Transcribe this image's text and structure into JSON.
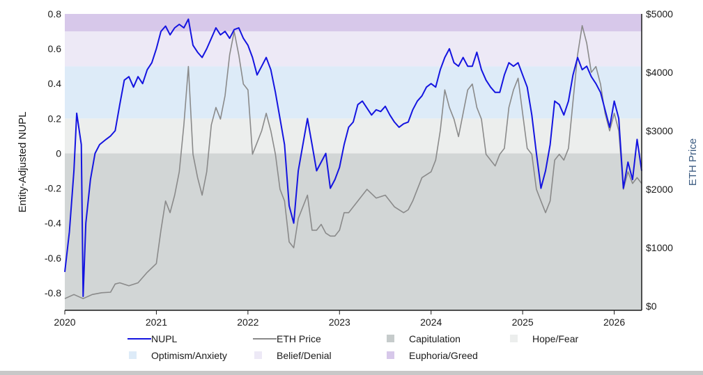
{
  "chart_data": {
    "type": "line",
    "title": "",
    "ylabel": "Entity-Adjusted NUPL",
    "y2label": "ETH Price",
    "xlim": [
      2020,
      2026.3
    ],
    "ylim": [
      -0.9,
      0.8
    ],
    "y2lim": [
      -70,
      5000
    ],
    "x_ticks": [
      {
        "value": 2020,
        "label": "2020"
      },
      {
        "value": 2021,
        "label": "2021"
      },
      {
        "value": 2022,
        "label": "2022"
      },
      {
        "value": 2023,
        "label": "2023"
      },
      {
        "value": 2024,
        "label": "2024"
      },
      {
        "value": 2025,
        "label": "2025"
      },
      {
        "value": 2026,
        "label": "2026"
      }
    ],
    "y_ticks": [
      {
        "value": 0.8,
        "label": "0.8"
      },
      {
        "value": 0.6,
        "label": "0.6"
      },
      {
        "value": 0.4,
        "label": "0.4"
      },
      {
        "value": 0.2,
        "label": "0.2"
      },
      {
        "value": 0,
        "label": "0"
      },
      {
        "value": -0.2,
        "label": "-0.2"
      },
      {
        "value": -0.4,
        "label": "-0.4"
      },
      {
        "value": -0.6,
        "label": "-0.6"
      },
      {
        "value": -0.8,
        "label": "-0.8"
      }
    ],
    "y2_ticks": [
      {
        "value": 5000,
        "label": "$5000"
      },
      {
        "value": 4000,
        "label": "$4000"
      },
      {
        "value": 3000,
        "label": "$3000"
      },
      {
        "value": 2000,
        "label": "$2000"
      },
      {
        "value": 1000,
        "label": "$1000"
      },
      {
        "value": 0,
        "label": "$0"
      }
    ],
    "zones": [
      {
        "name": "Capitulation",
        "from": -0.9,
        "to": 0,
        "color": "#d2d6d6"
      },
      {
        "name": "Hope/Fear",
        "from": 0,
        "to": 0.2,
        "color": "#eceeed"
      },
      {
        "name": "Optimism/Anxiety",
        "from": 0.2,
        "to": 0.5,
        "color": "#ddebf8"
      },
      {
        "name": "Belief/Denial",
        "from": 0.5,
        "to": 0.7,
        "color": "#ede9f6"
      },
      {
        "name": "Euphoria/Greed",
        "from": 0.7,
        "to": 0.8,
        "color": "#d7c8ea"
      }
    ],
    "series": [
      {
        "name": "NUPL",
        "axis": "left",
        "color": "#1414e0",
        "points": [
          [
            2020.0,
            -0.68
          ],
          [
            2020.05,
            -0.45
          ],
          [
            2020.1,
            -0.1
          ],
          [
            2020.13,
            0.23
          ],
          [
            2020.18,
            0.05
          ],
          [
            2020.2,
            -0.82
          ],
          [
            2020.23,
            -0.4
          ],
          [
            2020.28,
            -0.15
          ],
          [
            2020.33,
            0.0
          ],
          [
            2020.38,
            0.05
          ],
          [
            2020.45,
            0.08
          ],
          [
            2020.5,
            0.1
          ],
          [
            2020.55,
            0.13
          ],
          [
            2020.6,
            0.28
          ],
          [
            2020.65,
            0.42
          ],
          [
            2020.7,
            0.44
          ],
          [
            2020.75,
            0.38
          ],
          [
            2020.8,
            0.44
          ],
          [
            2020.85,
            0.4
          ],
          [
            2020.9,
            0.48
          ],
          [
            2020.95,
            0.52
          ],
          [
            2021.0,
            0.6
          ],
          [
            2021.05,
            0.7
          ],
          [
            2021.1,
            0.73
          ],
          [
            2021.15,
            0.68
          ],
          [
            2021.2,
            0.72
          ],
          [
            2021.25,
            0.74
          ],
          [
            2021.3,
            0.72
          ],
          [
            2021.35,
            0.77
          ],
          [
            2021.4,
            0.62
          ],
          [
            2021.45,
            0.58
          ],
          [
            2021.5,
            0.55
          ],
          [
            2021.55,
            0.6
          ],
          [
            2021.6,
            0.66
          ],
          [
            2021.65,
            0.72
          ],
          [
            2021.7,
            0.68
          ],
          [
            2021.75,
            0.7
          ],
          [
            2021.8,
            0.66
          ],
          [
            2021.85,
            0.71
          ],
          [
            2021.9,
            0.72
          ],
          [
            2021.95,
            0.66
          ],
          [
            2022.0,
            0.62
          ],
          [
            2022.05,
            0.55
          ],
          [
            2022.1,
            0.45
          ],
          [
            2022.15,
            0.5
          ],
          [
            2022.2,
            0.55
          ],
          [
            2022.25,
            0.48
          ],
          [
            2022.3,
            0.35
          ],
          [
            2022.35,
            0.2
          ],
          [
            2022.4,
            0.05
          ],
          [
            2022.45,
            -0.3
          ],
          [
            2022.5,
            -0.4
          ],
          [
            2022.55,
            -0.1
          ],
          [
            2022.6,
            0.05
          ],
          [
            2022.65,
            0.2
          ],
          [
            2022.7,
            0.05
          ],
          [
            2022.75,
            -0.1
          ],
          [
            2022.8,
            -0.05
          ],
          [
            2022.85,
            0.0
          ],
          [
            2022.9,
            -0.2
          ],
          [
            2022.95,
            -0.15
          ],
          [
            2023.0,
            -0.08
          ],
          [
            2023.05,
            0.05
          ],
          [
            2023.1,
            0.15
          ],
          [
            2023.15,
            0.18
          ],
          [
            2023.2,
            0.28
          ],
          [
            2023.25,
            0.3
          ],
          [
            2023.3,
            0.26
          ],
          [
            2023.35,
            0.22
          ],
          [
            2023.4,
            0.25
          ],
          [
            2023.45,
            0.24
          ],
          [
            2023.5,
            0.27
          ],
          [
            2023.55,
            0.22
          ],
          [
            2023.6,
            0.18
          ],
          [
            2023.65,
            0.15
          ],
          [
            2023.7,
            0.17
          ],
          [
            2023.75,
            0.18
          ],
          [
            2023.8,
            0.25
          ],
          [
            2023.85,
            0.3
          ],
          [
            2023.9,
            0.33
          ],
          [
            2023.95,
            0.38
          ],
          [
            2024.0,
            0.4
          ],
          [
            2024.05,
            0.38
          ],
          [
            2024.1,
            0.48
          ],
          [
            2024.15,
            0.55
          ],
          [
            2024.2,
            0.6
          ],
          [
            2024.25,
            0.52
          ],
          [
            2024.3,
            0.5
          ],
          [
            2024.35,
            0.55
          ],
          [
            2024.4,
            0.5
          ],
          [
            2024.45,
            0.5
          ],
          [
            2024.5,
            0.58
          ],
          [
            2024.55,
            0.48
          ],
          [
            2024.6,
            0.42
          ],
          [
            2024.65,
            0.38
          ],
          [
            2024.7,
            0.35
          ],
          [
            2024.75,
            0.35
          ],
          [
            2024.8,
            0.45
          ],
          [
            2024.85,
            0.52
          ],
          [
            2024.9,
            0.5
          ],
          [
            2024.95,
            0.52
          ],
          [
            2025.0,
            0.45
          ],
          [
            2025.05,
            0.38
          ],
          [
            2025.1,
            0.22
          ],
          [
            2025.15,
            0.0
          ],
          [
            2025.2,
            -0.2
          ],
          [
            2025.25,
            -0.1
          ],
          [
            2025.3,
            0.05
          ],
          [
            2025.35,
            0.3
          ],
          [
            2025.4,
            0.28
          ],
          [
            2025.45,
            0.22
          ],
          [
            2025.5,
            0.3
          ],
          [
            2025.55,
            0.45
          ],
          [
            2025.6,
            0.55
          ],
          [
            2025.65,
            0.48
          ],
          [
            2025.7,
            0.5
          ],
          [
            2025.75,
            0.44
          ],
          [
            2025.8,
            0.4
          ],
          [
            2025.85,
            0.35
          ],
          [
            2025.9,
            0.25
          ],
          [
            2025.95,
            0.15
          ],
          [
            2026.0,
            0.3
          ],
          [
            2026.05,
            0.2
          ],
          [
            2026.1,
            -0.2
          ],
          [
            2026.15,
            -0.05
          ],
          [
            2026.2,
            -0.15
          ],
          [
            2026.25,
            0.08
          ],
          [
            2026.3,
            -0.1
          ]
        ]
      },
      {
        "name": "ETH Price",
        "axis": "right",
        "color": "#8a8a8a",
        "points": [
          [
            2020.0,
            130
          ],
          [
            2020.1,
            200
          ],
          [
            2020.2,
            130
          ],
          [
            2020.3,
            200
          ],
          [
            2020.4,
            230
          ],
          [
            2020.5,
            240
          ],
          [
            2020.55,
            380
          ],
          [
            2020.6,
            400
          ],
          [
            2020.7,
            350
          ],
          [
            2020.8,
            400
          ],
          [
            2020.9,
            580
          ],
          [
            2021.0,
            730
          ],
          [
            2021.05,
            1300
          ],
          [
            2021.1,
            1800
          ],
          [
            2021.15,
            1600
          ],
          [
            2021.2,
            1900
          ],
          [
            2021.25,
            2300
          ],
          [
            2021.3,
            3100
          ],
          [
            2021.35,
            4100
          ],
          [
            2021.4,
            2600
          ],
          [
            2021.45,
            2200
          ],
          [
            2021.5,
            1900
          ],
          [
            2021.55,
            2300
          ],
          [
            2021.6,
            3100
          ],
          [
            2021.65,
            3400
          ],
          [
            2021.7,
            3200
          ],
          [
            2021.75,
            3600
          ],
          [
            2021.8,
            4300
          ],
          [
            2021.85,
            4700
          ],
          [
            2021.9,
            4300
          ],
          [
            2021.95,
            3800
          ],
          [
            2022.0,
            3700
          ],
          [
            2022.05,
            2600
          ],
          [
            2022.1,
            2800
          ],
          [
            2022.15,
            3000
          ],
          [
            2022.2,
            3300
          ],
          [
            2022.25,
            3000
          ],
          [
            2022.3,
            2600
          ],
          [
            2022.35,
            2000
          ],
          [
            2022.4,
            1800
          ],
          [
            2022.45,
            1100
          ],
          [
            2022.5,
            1000
          ],
          [
            2022.55,
            1500
          ],
          [
            2022.6,
            1700
          ],
          [
            2022.65,
            1900
          ],
          [
            2022.7,
            1300
          ],
          [
            2022.75,
            1300
          ],
          [
            2022.8,
            1400
          ],
          [
            2022.85,
            1250
          ],
          [
            2022.9,
            1200
          ],
          [
            2022.95,
            1200
          ],
          [
            2023.0,
            1300
          ],
          [
            2023.05,
            1600
          ],
          [
            2023.1,
            1600
          ],
          [
            2023.2,
            1800
          ],
          [
            2023.3,
            2000
          ],
          [
            2023.4,
            1850
          ],
          [
            2023.5,
            1900
          ],
          [
            2023.6,
            1700
          ],
          [
            2023.7,
            1600
          ],
          [
            2023.75,
            1650
          ],
          [
            2023.8,
            1800
          ],
          [
            2023.85,
            2000
          ],
          [
            2023.9,
            2200
          ],
          [
            2024.0,
            2300
          ],
          [
            2024.05,
            2500
          ],
          [
            2024.1,
            3000
          ],
          [
            2024.15,
            3700
          ],
          [
            2024.2,
            3400
          ],
          [
            2024.25,
            3200
          ],
          [
            2024.3,
            2900
          ],
          [
            2024.4,
            3700
          ],
          [
            2024.45,
            3800
          ],
          [
            2024.5,
            3400
          ],
          [
            2024.55,
            3200
          ],
          [
            2024.6,
            2600
          ],
          [
            2024.65,
            2500
          ],
          [
            2024.7,
            2400
          ],
          [
            2024.75,
            2600
          ],
          [
            2024.8,
            2700
          ],
          [
            2024.85,
            3400
          ],
          [
            2024.9,
            3700
          ],
          [
            2024.95,
            3900
          ],
          [
            2025.0,
            3300
          ],
          [
            2025.05,
            2700
          ],
          [
            2025.1,
            2600
          ],
          [
            2025.15,
            2000
          ],
          [
            2025.2,
            1800
          ],
          [
            2025.25,
            1600
          ],
          [
            2025.3,
            1800
          ],
          [
            2025.35,
            2500
          ],
          [
            2025.4,
            2600
          ],
          [
            2025.45,
            2500
          ],
          [
            2025.5,
            2700
          ],
          [
            2025.55,
            3500
          ],
          [
            2025.6,
            4300
          ],
          [
            2025.65,
            4800
          ],
          [
            2025.7,
            4500
          ],
          [
            2025.75,
            4000
          ],
          [
            2025.8,
            4100
          ],
          [
            2025.85,
            3800
          ],
          [
            2025.9,
            3300
          ],
          [
            2025.95,
            3000
          ],
          [
            2026.0,
            3300
          ],
          [
            2026.05,
            3000
          ],
          [
            2026.1,
            2000
          ],
          [
            2026.15,
            2300
          ],
          [
            2026.2,
            2100
          ],
          [
            2026.25,
            2200
          ],
          [
            2026.3,
            2100
          ]
        ]
      }
    ],
    "legend": {
      "placement": "bottom",
      "items": [
        {
          "label": "NUPL",
          "kind": "line",
          "color": "#1414e0"
        },
        {
          "label": "ETH Price",
          "kind": "line",
          "color": "#8a8a8a"
        },
        {
          "label": "Capitulation",
          "kind": "swatch",
          "color": "#c6cbcb"
        },
        {
          "label": "Hope/Fear",
          "kind": "swatch",
          "color": "#eceeed"
        },
        {
          "label": "Optimism/Anxiety",
          "kind": "swatch",
          "color": "#ddebf8"
        },
        {
          "label": "Belief/Denial",
          "kind": "swatch",
          "color": "#ede9f6"
        },
        {
          "label": "Euphoria/Greed",
          "kind": "swatch",
          "color": "#d7c8ea"
        }
      ]
    },
    "colors": {
      "left_axis_title": "#1a1a1a",
      "right_axis_title": "#3a5a80"
    }
  }
}
